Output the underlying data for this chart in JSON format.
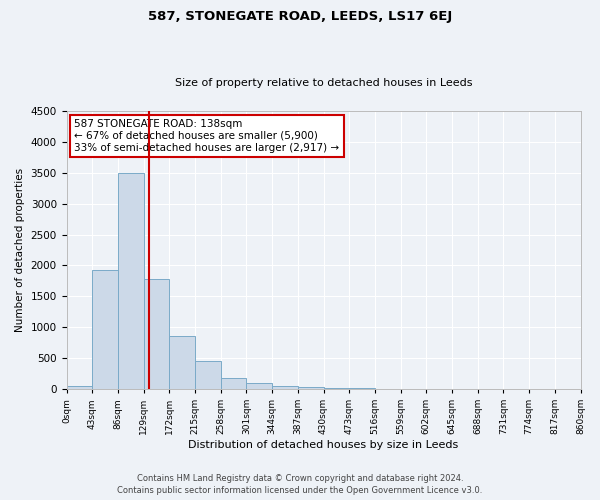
{
  "title": "587, STONEGATE ROAD, LEEDS, LS17 6EJ",
  "subtitle": "Size of property relative to detached houses in Leeds",
  "xlabel": "Distribution of detached houses by size in Leeds",
  "ylabel": "Number of detached properties",
  "bin_edges": [
    0,
    43,
    86,
    129,
    172,
    215,
    258,
    301,
    344,
    387,
    430,
    473,
    516,
    559,
    602,
    645,
    688,
    731,
    774,
    817,
    860
  ],
  "bar_values": [
    50,
    1930,
    3500,
    1780,
    860,
    460,
    175,
    100,
    55,
    30,
    15,
    10,
    5,
    3,
    2,
    1,
    0,
    0,
    0,
    0
  ],
  "tick_labels": [
    "0sqm",
    "43sqm",
    "86sqm",
    "129sqm",
    "172sqm",
    "215sqm",
    "258sqm",
    "301sqm",
    "344sqm",
    "387sqm",
    "430sqm",
    "473sqm",
    "516sqm",
    "559sqm",
    "602sqm",
    "645sqm",
    "688sqm",
    "731sqm",
    "774sqm",
    "817sqm",
    "860sqm"
  ],
  "bar_color": "#ccd9e8",
  "bar_edge_color": "#7aaac8",
  "property_line_x": 138,
  "property_line_color": "#cc0000",
  "ylim": [
    0,
    4500
  ],
  "yticks": [
    0,
    500,
    1000,
    1500,
    2000,
    2500,
    3000,
    3500,
    4000,
    4500
  ],
  "annotation_line1": "587 STONEGATE ROAD: 138sqm",
  "annotation_line2": "← 67% of detached houses are smaller (5,900)",
  "annotation_line3": "33% of semi-detached houses are larger (2,917) →",
  "annotation_box_edge_color": "#cc0000",
  "footer_line1": "Contains HM Land Registry data © Crown copyright and database right 2024.",
  "footer_line2": "Contains public sector information licensed under the Open Government Licence v3.0.",
  "bg_color": "#eef2f7",
  "plot_bg_color": "#eef2f7",
  "grid_color": "#ffffff",
  "title_fontsize": 9.5,
  "subtitle_fontsize": 8,
  "ylabel_fontsize": 7.5,
  "xlabel_fontsize": 8,
  "ytick_fontsize": 7.5,
  "xtick_fontsize": 6.5,
  "annot_fontsize": 7.5,
  "footer_fontsize": 6
}
